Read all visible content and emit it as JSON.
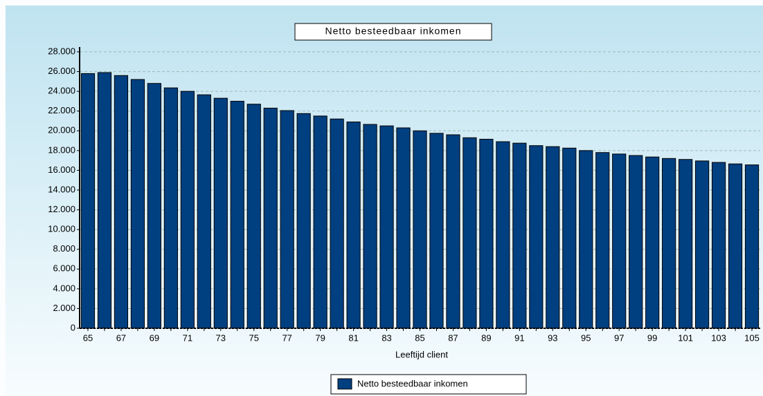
{
  "chart_data": {
    "type": "bar",
    "title": "Netto besteedbaar inkomen",
    "x_label": "Leeftijd client",
    "categories": [
      65,
      null,
      67,
      null,
      69,
      null,
      71,
      null,
      73,
      null,
      75,
      null,
      77,
      null,
      79,
      null,
      81,
      null,
      83,
      null,
      85,
      null,
      87,
      null,
      89,
      null,
      91,
      null,
      93,
      null,
      95,
      null,
      97,
      null,
      99,
      null,
      101,
      null,
      103,
      null,
      105
    ],
    "series": [
      {
        "name": "Netto besteedbaar inkomen",
        "color": "#003f80",
        "values": [
          25800,
          25900,
          25600,
          25200,
          24800,
          24350,
          24000,
          23650,
          23300,
          23000,
          22700,
          22300,
          22050,
          21750,
          21500,
          21200,
          20900,
          20650,
          20500,
          20300,
          20000,
          19750,
          19600,
          19300,
          19150,
          18900,
          18750,
          18500,
          18400,
          18250,
          18000,
          17800,
          17650,
          17500,
          17350,
          17200,
          17100,
          16950,
          16800,
          16650,
          16550
        ]
      }
    ],
    "ylim": [
      0,
      28000
    ],
    "yticks": [
      0,
      {
        "value": 2000,
        "label": "2.000"
      },
      {
        "value": 4000,
        "label": "4.000"
      },
      {
        "value": 6000,
        "label": "6.000"
      },
      {
        "value": 8000,
        "label": "8.000"
      },
      {
        "value": 10000,
        "label": "10.000"
      },
      {
        "value": 12000,
        "label": "12.000"
      },
      {
        "value": 14000,
        "label": "14.000"
      },
      {
        "value": 16000,
        "label": "16.000"
      },
      {
        "value": 18000,
        "label": "18.000"
      },
      {
        "value": 20000,
        "label": "20.000"
      },
      {
        "value": 22000,
        "label": "22.000"
      },
      {
        "value": 24000,
        "label": "24.000"
      },
      {
        "value": 26000,
        "label": "26.000"
      },
      {
        "value": 28000,
        "label": "28.000"
      }
    ],
    "grid": true
  }
}
